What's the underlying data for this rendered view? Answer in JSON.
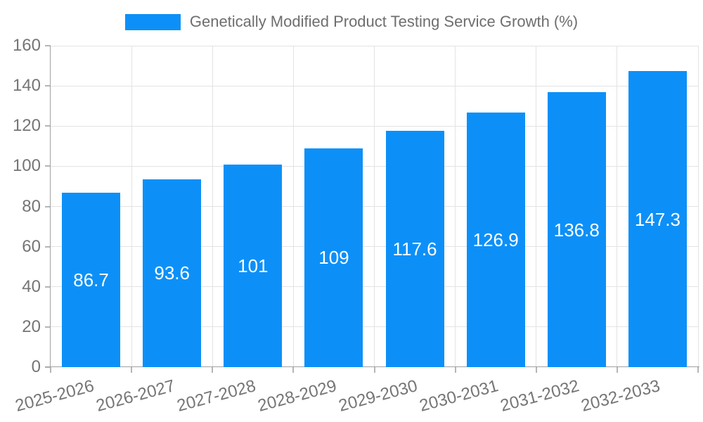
{
  "chart_data": {
    "type": "bar",
    "title": "Genetically Modified Product Testing Service Growth (%)",
    "categories": [
      "2025-2026",
      "2026-2027",
      "2027-2028",
      "2028-2029",
      "2029-2030",
      "2030-2031",
      "2031-2032",
      "2032-2033"
    ],
    "values": [
      86.7,
      93.6,
      101,
      109,
      117.6,
      126.9,
      136.8,
      147.3
    ],
    "xlabel": "",
    "ylabel": "",
    "ylim": [
      0,
      160
    ],
    "ytick_step": 20,
    "grid": true,
    "legend_position": "top-center",
    "value_labels_inside_bars": true,
    "colors": {
      "bar": "#0c90f8",
      "bar_value_label": "#ffffff",
      "axis_tick_label": "#757575",
      "title": "#6e6e6e",
      "gridline": "#e3e3e3",
      "axis_line": "#a0a0a0",
      "tick_mark": "#b5b5b5",
      "background": "#ffffff"
    }
  }
}
